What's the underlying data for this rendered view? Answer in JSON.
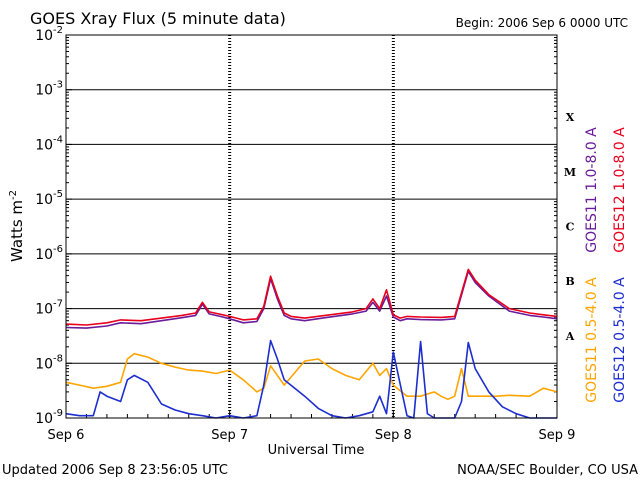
{
  "header": {
    "title": "GOES Xray Flux (5 minute data)",
    "begin": "Begin:  2006 Sep 6 0000 UTC"
  },
  "footer": {
    "updated": "Updated 2006 Sep  8 23:56:05 UTC",
    "credit": "NOAA/SEC Boulder, CO USA"
  },
  "chart_data": {
    "type": "line",
    "title": "GOES Xray Flux (5 minute data)",
    "xlabel": "Universal Time",
    "ylabel": "Watts m",
    "ylabel_exponent": "-2",
    "y_scale": "log",
    "ylim": [
      1e-09,
      0.01
    ],
    "y_ticks": [
      {
        "value": 0.01,
        "base": "10",
        "exp": "-2"
      },
      {
        "value": 0.001,
        "base": "10",
        "exp": "-3"
      },
      {
        "value": 0.0001,
        "base": "10",
        "exp": "-4"
      },
      {
        "value": 1e-05,
        "base": "10",
        "exp": "-5"
      },
      {
        "value": 1e-06,
        "base": "10",
        "exp": "-6"
      },
      {
        "value": 1e-07,
        "base": "10",
        "exp": "-7"
      },
      {
        "value": 1e-08,
        "base": "10",
        "exp": "-8"
      },
      {
        "value": 1e-09,
        "base": "10",
        "exp": "-9"
      }
    ],
    "x_ticks": [
      {
        "value": 0,
        "label": "Sep 6"
      },
      {
        "value": 24,
        "label": "Sep 7"
      },
      {
        "value": 48,
        "label": "Sep 8"
      },
      {
        "value": 72,
        "label": "Sep 9"
      }
    ],
    "x_unit": "hours since 2006 Sep 6 0000 UTC",
    "xlim": [
      0,
      72
    ],
    "flare_classes": [
      {
        "label": "X",
        "low": 0.0001,
        "high": 0.001
      },
      {
        "label": "M",
        "low": 1e-05,
        "high": 0.0001
      },
      {
        "label": "C",
        "low": 1e-06,
        "high": 1e-05
      },
      {
        "label": "B",
        "low": 1e-07,
        "high": 1e-06
      },
      {
        "label": "A",
        "low": 1e-08,
        "high": 1e-07
      }
    ],
    "legend_placement": "right",
    "series": [
      {
        "name": "GOES11 1.0-8.0 A",
        "color": "#6a1b9a",
        "x": [
          0,
          3,
          6,
          8,
          11,
          14,
          17,
          19,
          20,
          21,
          23,
          24,
          26,
          28,
          29,
          30,
          31,
          32,
          33,
          35,
          38,
          42,
          44,
          45,
          46,
          47,
          48,
          49,
          50,
          52,
          55,
          57,
          59,
          60,
          62,
          65,
          68,
          70,
          72
        ],
        "y": [
          4.5e-08,
          4.4e-08,
          4.8e-08,
          5.5e-08,
          5.3e-08,
          6e-08,
          6.8e-08,
          7.5e-08,
          1.2e-07,
          8e-08,
          7e-08,
          6.5e-08,
          5.5e-08,
          5.8e-08,
          1e-07,
          3.5e-07,
          1.5e-07,
          7.5e-08,
          6.5e-08,
          6e-08,
          6.8e-08,
          8e-08,
          9e-08,
          1.3e-07,
          9e-08,
          1.7e-07,
          7e-08,
          6e-08,
          6.5e-08,
          6.3e-08,
          6.2e-08,
          6.5e-08,
          4.8e-07,
          3e-07,
          1.7e-07,
          9e-08,
          7.5e-08,
          7e-08,
          6.5e-08
        ]
      },
      {
        "name": "GOES12 1.0-8.0 A",
        "color": "#e8001c",
        "x": [
          0,
          3,
          6,
          8,
          11,
          14,
          17,
          19,
          20,
          21,
          23,
          24,
          26,
          28,
          29,
          30,
          31,
          32,
          33,
          35,
          38,
          42,
          44,
          45,
          46,
          47,
          48,
          49,
          50,
          52,
          55,
          57,
          59,
          60,
          62,
          65,
          68,
          70,
          72
        ],
        "y": [
          5.2e-08,
          5e-08,
          5.5e-08,
          6.2e-08,
          6e-08,
          6.7e-08,
          7.5e-08,
          8.3e-08,
          1.3e-07,
          8.7e-08,
          7.7e-08,
          7.2e-08,
          6.2e-08,
          6.5e-08,
          1.1e-07,
          3.9e-07,
          1.7e-07,
          8.3e-08,
          7.2e-08,
          6.7e-08,
          7.5e-08,
          8.7e-08,
          1e-07,
          1.5e-07,
          1e-07,
          2.2e-07,
          7.7e-08,
          6.7e-08,
          7.2e-08,
          7e-08,
          6.9e-08,
          7.2e-08,
          5.2e-07,
          3.3e-07,
          1.8e-07,
          1e-07,
          8.3e-08,
          7.7e-08,
          7.2e-08
        ]
      },
      {
        "name": "GOES11 0.5-4.0 A",
        "color": "#ffa500",
        "x": [
          0,
          2,
          4,
          6,
          8,
          9,
          10,
          12,
          14,
          16,
          18,
          20,
          22,
          24,
          26,
          28,
          29,
          30,
          31,
          32,
          35,
          37,
          39,
          41,
          43,
          45,
          46,
          47,
          48,
          50,
          52,
          54,
          55,
          56,
          57,
          58,
          59,
          61,
          63,
          65,
          68,
          70,
          72
        ],
        "y": [
          4.5e-09,
          4e-09,
          3.5e-09,
          3.8e-09,
          4.5e-09,
          1.2e-08,
          1.5e-08,
          1.3e-08,
          1e-08,
          8.5e-09,
          7.5e-09,
          7.2e-09,
          6.5e-09,
          7.5e-09,
          5e-09,
          3e-09,
          3.5e-09,
          9e-09,
          6e-09,
          4e-09,
          1.1e-08,
          1.2e-08,
          8e-09,
          6e-09,
          5e-09,
          1e-08,
          6e-09,
          8e-09,
          4e-09,
          2.5e-09,
          2.5e-09,
          3e-09,
          2.5e-09,
          2.2e-09,
          2.5e-09,
          8e-09,
          2.5e-09,
          2.5e-09,
          2.5e-09,
          2.6e-09,
          2.5e-09,
          3.5e-09,
          3e-09
        ]
      },
      {
        "name": "GOES12 0.5-4.0 A",
        "color": "#1d2ecf",
        "x": [
          0,
          2,
          4,
          5,
          6,
          8,
          9,
          10,
          12,
          14,
          16,
          18,
          20,
          22,
          24,
          26,
          28,
          29,
          30,
          31,
          32,
          35,
          37,
          39,
          41,
          43,
          45,
          46,
          47,
          48,
          50,
          51,
          52,
          53,
          54,
          55,
          56,
          57,
          58,
          59,
          60,
          62,
          64,
          66,
          68,
          70,
          72
        ],
        "y": [
          1.2e-09,
          1.1e-09,
          1.1e-09,
          3e-09,
          2.5e-09,
          2e-09,
          5e-09,
          6e-09,
          4.5e-09,
          1.8e-09,
          1.4e-09,
          1.2e-09,
          1.1e-09,
          1e-09,
          1.1e-09,
          1e-09,
          1.1e-09,
          4e-09,
          2.6e-08,
          1.2e-08,
          5e-09,
          2.5e-09,
          1.5e-09,
          1.1e-09,
          1e-09,
          1.1e-09,
          1.3e-09,
          2.5e-09,
          1.2e-09,
          1.6e-08,
          1.1e-09,
          1e-09,
          2.5e-08,
          1.2e-09,
          1e-09,
          1e-09,
          1e-09,
          1e-09,
          2e-09,
          2.4e-08,
          8e-09,
          3e-09,
          1.6e-09,
          1.2e-09,
          1e-09,
          1e-09,
          1e-09
        ]
      }
    ],
    "grid": "horizontal at each decade; dashed vertical at day boundaries"
  }
}
